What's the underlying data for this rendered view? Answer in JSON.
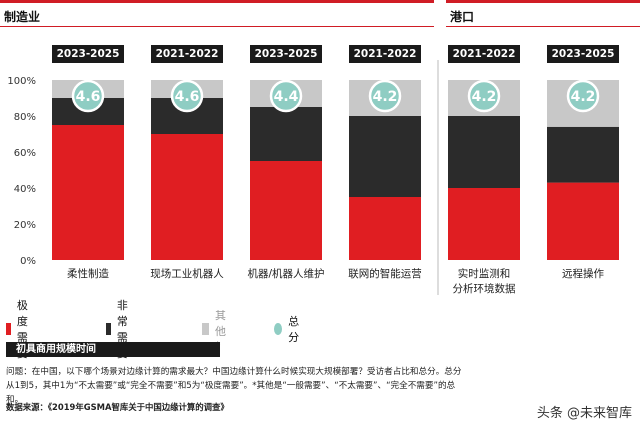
{
  "sections": [
    {
      "title": "制造业"
    },
    {
      "title": "港口"
    }
  ],
  "legend": {
    "critical": "极度需要",
    "high": "非常需要",
    "other": "其他*",
    "score": "总分"
  },
  "timeline_label": "初具商用规模时间",
  "note": "问题：在中国，以下哪个场景对边缘计算的需求最大？中国边缘计算什么时候实现大规模部署？受访者占比和总分。总分从1到5，其中1为“不太需要”或“完全不需要”和5为“极度需要”。*其他是“一般需要”、“不太需要”、“完全不需要”的总和。",
  "source": "数据来源：《2019年GSMA智库关于中国边缘计算的调查》",
  "watermark": "头条 @未来智库",
  "colors": {
    "critical": "#e01e22",
    "high": "#2b2b2b",
    "other": "#c8c8c8",
    "score": "#8fcdc3",
    "accent": "#d01c25"
  },
  "chart_data": {
    "type": "bar",
    "stacked": true,
    "categories": [
      "柔性制造",
      "现场工业机器人",
      "机器/机器人维护",
      "联网的智能运营",
      "实时监测和\n分析环境数据",
      "远程操作"
    ],
    "years": [
      "2023-2025",
      "2021-2022",
      "2023-2025",
      "2021-2022",
      "2021-2022",
      "2023-2025"
    ],
    "series": [
      {
        "name": "极度需要",
        "values": [
          75,
          70,
          55,
          35,
          40,
          43
        ]
      },
      {
        "name": "非常需要",
        "values": [
          15,
          20,
          30,
          45,
          40,
          31
        ]
      },
      {
        "name": "其他*",
        "values": [
          10,
          10,
          15,
          20,
          20,
          26
        ]
      }
    ],
    "scores": [
      4.6,
      4.6,
      4.4,
      4.2,
      4.2,
      4.2
    ],
    "ylim": [
      0,
      100
    ],
    "yticks": [
      "0%",
      "20%",
      "40%",
      "60%",
      "80%",
      "100%"
    ],
    "grid": false
  }
}
